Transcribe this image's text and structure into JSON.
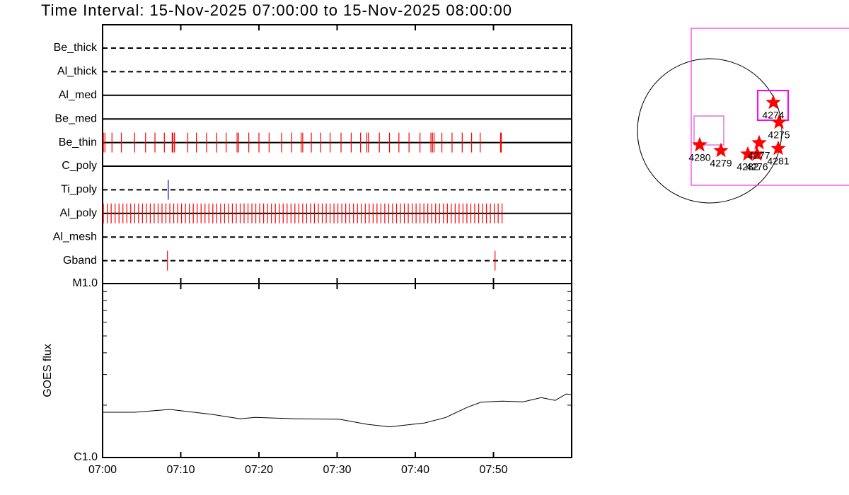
{
  "title": "Time Interval: 15-Nov-2025 07:00:00 to 15-Nov-2025 08:00:00",
  "chart_data": [
    {
      "type": "timeline",
      "color": "#ff0000",
      "xlim": [
        0,
        60
      ],
      "xticks": [
        {
          "value": 0,
          "label": "07:00"
        },
        {
          "value": 10,
          "label": "07:10"
        },
        {
          "value": 20,
          "label": "07:20"
        },
        {
          "value": 30,
          "label": "07:30"
        },
        {
          "value": 40,
          "label": "07:40"
        },
        {
          "value": 50,
          "label": "07:50"
        }
      ],
      "rows": [
        {
          "name": "Be_thick",
          "style": "dashed",
          "events": []
        },
        {
          "name": "Al_thick",
          "style": "dashed",
          "events": []
        },
        {
          "name": "Al_med",
          "style": "solid",
          "events": []
        },
        {
          "name": "Be_med",
          "style": "solid",
          "events": []
        },
        {
          "name": "Be_thin",
          "style": "solid",
          "events": [
            0.1,
            0.3,
            1.2,
            2.4,
            4.1,
            5.5,
            6.7,
            7.9,
            8.9,
            9.0,
            9.2,
            10.9,
            12.0,
            13.3,
            14.6,
            15.8,
            17.2,
            17.4,
            18.7,
            20.0,
            21.3,
            22.9,
            24.2,
            25.4,
            25.6,
            26.7,
            27.9,
            29.1,
            30.5,
            31.8,
            33.0,
            33.8,
            34.0,
            35.4,
            36.7,
            37.9,
            39.2,
            40.6,
            42.0,
            42.2,
            42.4,
            43.4,
            44.7,
            46.0,
            47.2,
            48.3,
            50.9,
            51.0
          ]
        },
        {
          "name": "C_poly",
          "style": "solid",
          "events": []
        },
        {
          "name": "Ti_poly",
          "style": "dashed",
          "color": "#0000cc",
          "events": [
            8.4
          ]
        },
        {
          "name": "Al_poly",
          "style": "solid",
          "events": [
            0.1,
            0.6,
            1.1,
            1.6,
            2.1,
            2.6,
            3.1,
            3.6,
            4.1,
            4.6,
            5.1,
            5.6,
            6.1,
            6.6,
            7.1,
            7.6,
            8.1,
            8.6,
            9.1,
            9.6,
            10.1,
            10.6,
            11.1,
            11.6,
            12.1,
            12.6,
            13.1,
            13.6,
            14.1,
            14.6,
            15.1,
            15.6,
            16.1,
            16.6,
            17.1,
            17.6,
            18.1,
            18.6,
            19.1,
            19.6,
            20.1,
            20.6,
            21.1,
            21.6,
            22.1,
            22.6,
            23.1,
            23.6,
            24.1,
            24.6,
            25.1,
            25.6,
            26.1,
            26.6,
            27.1,
            27.6,
            28.1,
            28.6,
            29.1,
            29.6,
            30.1,
            30.6,
            31.1,
            31.6,
            32.1,
            32.6,
            33.1,
            33.6,
            34.1,
            34.6,
            35.1,
            35.6,
            36.1,
            36.6,
            37.1,
            37.6,
            38.1,
            38.6,
            39.1,
            39.6,
            40.1,
            40.6,
            41.1,
            41.6,
            42.1,
            42.6,
            43.1,
            43.6,
            44.1,
            44.6,
            45.1,
            45.6,
            46.1,
            46.6,
            47.1,
            47.6,
            48.1,
            48.6,
            49.1,
            49.6,
            50.1,
            50.6,
            51.1
          ]
        },
        {
          "name": "Al_mesh",
          "style": "dashed",
          "events": []
        },
        {
          "name": "Gband",
          "style": "dashed",
          "events": [
            8.3,
            50.2
          ]
        }
      ]
    },
    {
      "type": "line",
      "ylabel": "GOES flux",
      "color": "#000000",
      "log_scale": true,
      "xlim": [
        0,
        60
      ],
      "xticks": [
        {
          "value": 0,
          "label": "07:00"
        },
        {
          "value": 10,
          "label": "07:10"
        },
        {
          "value": 20,
          "label": "07:20"
        },
        {
          "value": 30,
          "label": "07:30"
        },
        {
          "value": 40,
          "label": "07:40"
        },
        {
          "value": 50,
          "label": "07:50"
        }
      ],
      "ylim": [
        1e-06,
        1e-05
      ],
      "yticks": [
        {
          "value": 1e-06,
          "label": "C1.0"
        },
        {
          "value": 1e-05,
          "label": "M1.0"
        }
      ],
      "minor_yticks": [
        2e-06,
        3e-06,
        4e-06,
        5e-06,
        6e-06,
        7e-06,
        8e-06,
        9e-06
      ],
      "x": [
        0,
        4.1,
        8.6,
        14,
        17.6,
        19.5,
        24.9,
        30.3,
        33.9,
        36.7,
        41.2,
        43.9,
        46.6,
        48.4,
        51.1,
        53.8,
        56.1,
        57.9,
        59.3,
        60
      ],
      "values": [
        1.82e-06,
        1.82e-06,
        1.89e-06,
        1.77e-06,
        1.67e-06,
        1.7e-06,
        1.67e-06,
        1.66e-06,
        1.55e-06,
        1.5e-06,
        1.58e-06,
        1.7e-06,
        1.94e-06,
        2.08e-06,
        2.11e-06,
        2.09e-06,
        2.21e-06,
        2.13e-06,
        2.32e-06,
        2.3e-06
      ]
    }
  ],
  "map": {
    "regions": [
      "4274",
      "4275",
      "4280",
      "4279",
      "4282",
      "4276",
      "4277",
      "4281"
    ]
  }
}
